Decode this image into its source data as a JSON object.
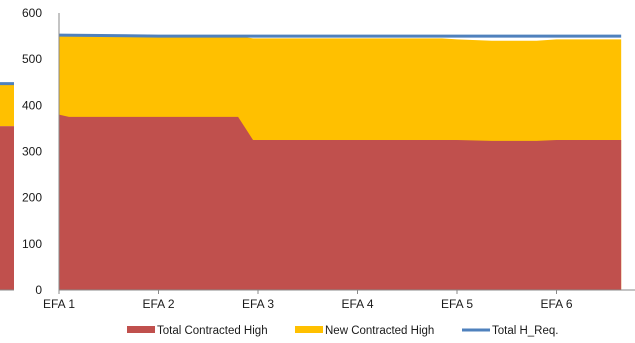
{
  "chart_data": {
    "type": "area",
    "x": [
      "EFA 1",
      "EFA 2",
      "EFA 3",
      "EFA 4",
      "EFA 5",
      "EFA 6"
    ],
    "ylim": [
      0,
      600
    ],
    "y_ticks": [
      0,
      100,
      200,
      300,
      400,
      500,
      600
    ],
    "grid": false,
    "legend_position": "bottom",
    "series": [
      {
        "name": "Total Contracted High",
        "kind": "area",
        "color": "#c0504d",
        "points": [
          [
            0,
            380
          ],
          [
            0.1,
            375
          ],
          [
            1.0,
            375
          ],
          [
            1.8,
            375
          ],
          [
            1.95,
            325
          ],
          [
            3.0,
            325
          ],
          [
            4.0,
            325
          ],
          [
            4.35,
            323
          ],
          [
            4.8,
            323
          ],
          [
            5.0,
            325
          ],
          [
            5.65,
            325
          ]
        ]
      },
      {
        "name": "New Contracted High",
        "kind": "stacked-area",
        "color": "#ffc000",
        "points": [
          [
            0,
            550
          ],
          [
            1.0,
            550
          ],
          [
            1.8,
            550
          ],
          [
            1.95,
            545
          ],
          [
            3.0,
            545
          ],
          [
            3.85,
            545
          ],
          [
            4.0,
            543
          ],
          [
            4.35,
            540
          ],
          [
            4.8,
            540
          ],
          [
            5.0,
            543
          ],
          [
            5.65,
            543
          ]
        ]
      },
      {
        "name": "Total H_Req.",
        "kind": "line",
        "color": "#4f81bd",
        "points": [
          [
            0,
            552
          ],
          [
            1.0,
            550
          ],
          [
            2.0,
            550
          ],
          [
            3.0,
            550
          ],
          [
            4.0,
            550
          ],
          [
            5.0,
            550
          ],
          [
            5.65,
            550
          ]
        ]
      }
    ],
    "clipped_left_panel": {
      "series": [
        {
          "name": "Total Contracted High",
          "value": 355
        },
        {
          "name": "New Contracted High",
          "value": 445
        },
        {
          "name": "Total H_Req.",
          "value": 447
        }
      ]
    }
  }
}
